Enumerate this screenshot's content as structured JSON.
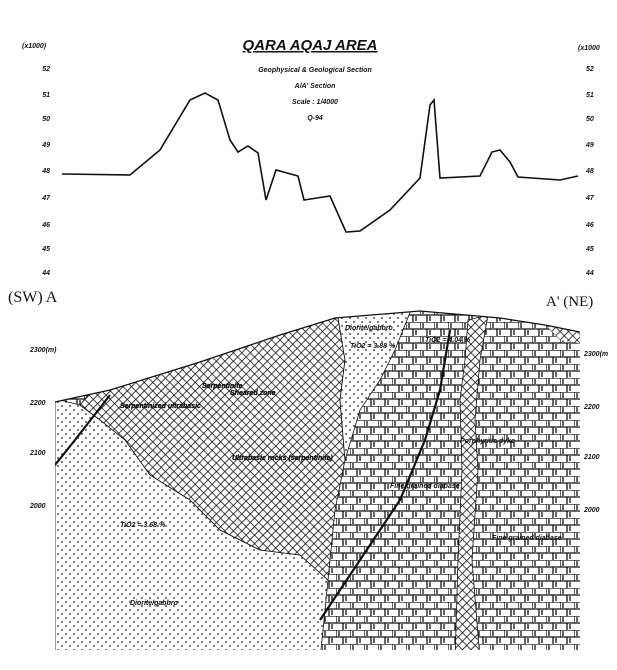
{
  "header": {
    "title": "QARA AQAJ AREA",
    "subtitle": [
      "Geophysical & Geological Section",
      "A/A' Section",
      "Scale : 1/4000",
      "Q-94"
    ]
  },
  "profile": {
    "unit_left": "(x1000)",
    "unit_right": "(x1000",
    "left_ticks": [
      "52",
      "51",
      "50",
      "49",
      "48",
      "47",
      "46",
      "45",
      "44"
    ],
    "right_ticks": [
      "52",
      "51",
      "50",
      "49",
      "48",
      "47",
      "46",
      "45",
      "44"
    ]
  },
  "section": {
    "end_left": "(SW) A",
    "end_right": "A' (NE)",
    "left_elevations": [
      "2300(m)",
      "2200",
      "2100",
      "2000"
    ],
    "right_elevations": [
      "2300(m",
      "2200",
      "2100",
      "2000"
    ],
    "units": [
      "Diorite/gabbro",
      "TiO2 = 3.88 %",
      "TiO2 = 4.04 %",
      "Serpentinite",
      "Serpentinized ultrabasic",
      "Ultrabasic rocks (serpentinite)",
      "Porphyritic dyke",
      "Fine grained diabase",
      "TiO2 = 3.68 %",
      "Fine grained diabase",
      "Diorite/gabbro",
      "Sheared zone"
    ]
  }
}
